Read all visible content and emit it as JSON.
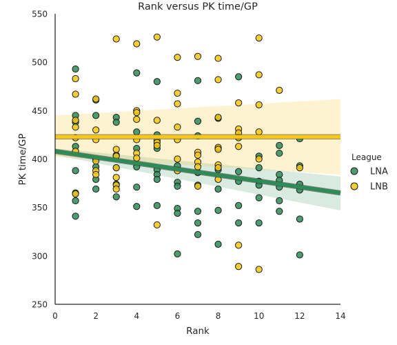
{
  "chart_data": {
    "type": "scatter",
    "title": "Rank versus PK time/GP",
    "xlabel": "Rank",
    "ylabel": "PK time/GP",
    "xlim": [
      0,
      14
    ],
    "ylim": [
      250,
      550
    ],
    "xticks": [
      "0",
      "2",
      "4",
      "6",
      "8",
      "10",
      "12",
      "14"
    ],
    "yticks": [
      "250",
      "300",
      "350",
      "400",
      "450",
      "500",
      "550"
    ],
    "legend": {
      "title": "League",
      "placement": "right"
    },
    "series": [
      {
        "name": "LNA",
        "color": "#2e8b57",
        "regression": {
          "y_at_0": 408,
          "y_at_14": 365
        },
        "ci_band": {
          "upper_at_0": 411,
          "lower_at_0": 404,
          "upper_at_14": 382,
          "lower_at_14": 347
        },
        "points": [
          [
            1,
            493
          ],
          [
            1,
            445
          ],
          [
            1,
            438
          ],
          [
            1,
            413
          ],
          [
            1,
            388
          ],
          [
            1,
            365
          ],
          [
            1,
            357
          ],
          [
            1,
            341
          ],
          [
            2,
            461
          ],
          [
            2,
            445
          ],
          [
            2,
            400
          ],
          [
            2,
            392
          ],
          [
            2,
            379
          ],
          [
            2,
            369
          ],
          [
            3,
            443
          ],
          [
            3,
            438
          ],
          [
            3,
            404
          ],
          [
            3,
            391
          ],
          [
            3,
            374
          ],
          [
            3,
            361
          ],
          [
            4,
            489
          ],
          [
            4,
            428
          ],
          [
            4,
            411
          ],
          [
            4,
            392
          ],
          [
            4,
            371
          ],
          [
            4,
            351
          ],
          [
            5,
            480
          ],
          [
            5,
            425
          ],
          [
            5,
            411
          ],
          [
            5,
            389
          ],
          [
            5,
            384
          ],
          [
            5,
            379
          ],
          [
            5,
            352
          ],
          [
            6,
            393
          ],
          [
            6,
            376
          ],
          [
            6,
            372
          ],
          [
            6,
            349
          ],
          [
            6,
            344
          ],
          [
            6,
            302
          ],
          [
            7,
            481
          ],
          [
            7,
            439
          ],
          [
            7,
            424
          ],
          [
            7,
            386
          ],
          [
            7,
            373
          ],
          [
            7,
            346
          ],
          [
            7,
            334
          ],
          [
            7,
            322
          ],
          [
            8,
            442
          ],
          [
            8,
            411
          ],
          [
            8,
            389
          ],
          [
            8,
            369
          ],
          [
            8,
            347
          ],
          [
            8,
            312
          ],
          [
            9,
            485
          ],
          [
            9,
            423
          ],
          [
            9,
            387
          ],
          [
            9,
            377
          ],
          [
            9,
            352
          ],
          [
            9,
            334
          ],
          [
            10,
            403
          ],
          [
            10,
            391
          ],
          [
            10,
            377
          ],
          [
            10,
            373
          ],
          [
            10,
            360
          ],
          [
            10,
            334
          ],
          [
            11,
            414
          ],
          [
            11,
            406
          ],
          [
            11,
            384
          ],
          [
            11,
            378
          ],
          [
            11,
            371
          ],
          [
            11,
            357
          ],
          [
            11,
            346
          ],
          [
            12,
            421
          ],
          [
            12,
            393
          ],
          [
            12,
            374
          ],
          [
            12,
            368
          ],
          [
            12,
            338
          ],
          [
            12,
            301
          ]
        ]
      },
      {
        "name": "LNB",
        "color": "#f5c518",
        "regression": {
          "y_at_0": 423,
          "y_at_14": 423
        },
        "ci_band": {
          "upper_at_0": 445,
          "lower_at_0": 402,
          "upper_at_14": 462,
          "lower_at_14": 384
        },
        "points": [
          [
            1,
            483
          ],
          [
            1,
            467
          ],
          [
            1,
            440
          ],
          [
            1,
            433
          ],
          [
            1,
            422
          ],
          [
            1,
            408
          ],
          [
            1,
            364
          ],
          [
            2,
            462
          ],
          [
            2,
            430
          ],
          [
            2,
            420
          ],
          [
            2,
            398
          ],
          [
            2,
            388
          ],
          [
            2,
            384
          ],
          [
            3,
            524
          ],
          [
            3,
            410
          ],
          [
            3,
            403
          ],
          [
            3,
            391
          ],
          [
            3,
            381
          ],
          [
            3,
            373
          ],
          [
            3,
            369
          ],
          [
            4,
            519
          ],
          [
            4,
            450
          ],
          [
            4,
            448
          ],
          [
            4,
            441
          ],
          [
            4,
            420
          ],
          [
            4,
            406
          ],
          [
            4,
            401
          ],
          [
            5,
            526
          ],
          [
            5,
            440
          ],
          [
            5,
            419
          ],
          [
            5,
            417
          ],
          [
            5,
            414
          ],
          [
            5,
            332
          ],
          [
            6,
            505
          ],
          [
            6,
            468
          ],
          [
            6,
            457
          ],
          [
            6,
            433
          ],
          [
            6,
            420
          ],
          [
            6,
            400
          ],
          [
            6,
            388
          ],
          [
            7,
            506
          ],
          [
            7,
            407
          ],
          [
            7,
            404
          ],
          [
            7,
            397
          ],
          [
            7,
            392
          ],
          [
            7,
            372
          ],
          [
            8,
            504
          ],
          [
            8,
            482
          ],
          [
            8,
            443
          ],
          [
            8,
            412
          ],
          [
            8,
            410
          ],
          [
            8,
            394
          ],
          [
            8,
            391
          ],
          [
            8,
            379
          ],
          [
            9,
            458
          ],
          [
            9,
            431
          ],
          [
            9,
            427
          ],
          [
            9,
            422
          ],
          [
            9,
            413
          ],
          [
            9,
            311
          ],
          [
            9,
            289
          ],
          [
            10,
            525
          ],
          [
            10,
            487
          ],
          [
            10,
            456
          ],
          [
            10,
            428
          ],
          [
            10,
            400
          ],
          [
            10,
            286
          ],
          [
            11,
            471
          ],
          [
            12,
            391
          ]
        ]
      }
    ]
  }
}
